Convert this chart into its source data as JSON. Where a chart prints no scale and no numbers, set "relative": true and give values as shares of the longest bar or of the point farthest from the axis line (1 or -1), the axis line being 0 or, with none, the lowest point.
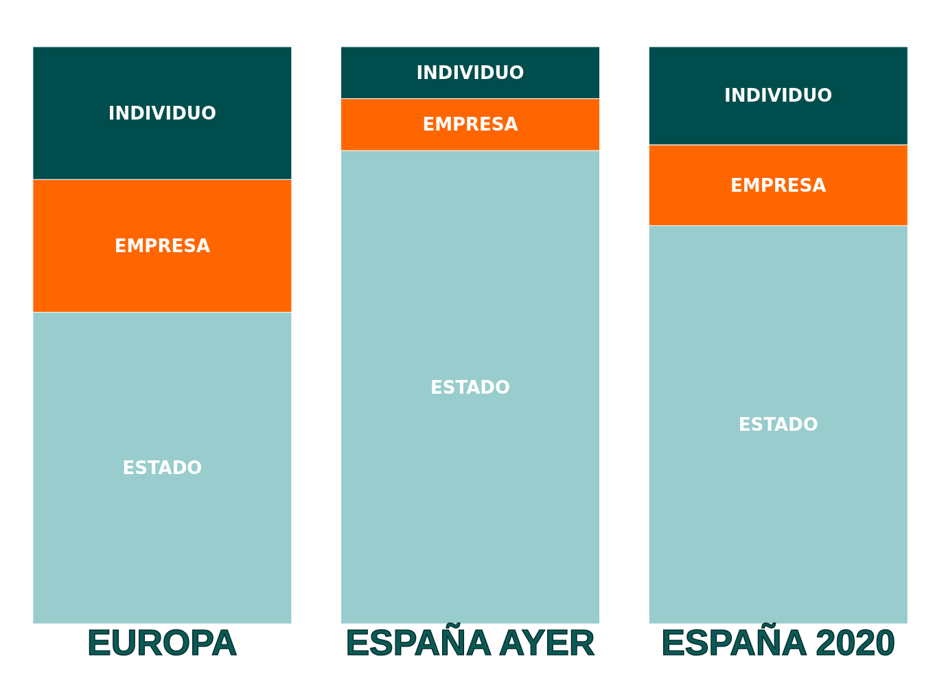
{
  "chart_data": {
    "type": "bar",
    "stacked": true,
    "relative": true,
    "categories": [
      "EUROPA",
      "ESPAÑA AYER",
      "ESPAÑA 2020"
    ],
    "series": [
      {
        "name": "ESTADO",
        "color": "#99cccc",
        "values": [
          0.54,
          0.82,
          0.69
        ]
      },
      {
        "name": "EMPRESA",
        "color": "#ff6600",
        "values": [
          0.23,
          0.09,
          0.14
        ]
      },
      {
        "name": "INDIVIDUO",
        "color": "#004d4d",
        "values": [
          0.23,
          0.09,
          0.17
        ]
      }
    ]
  }
}
